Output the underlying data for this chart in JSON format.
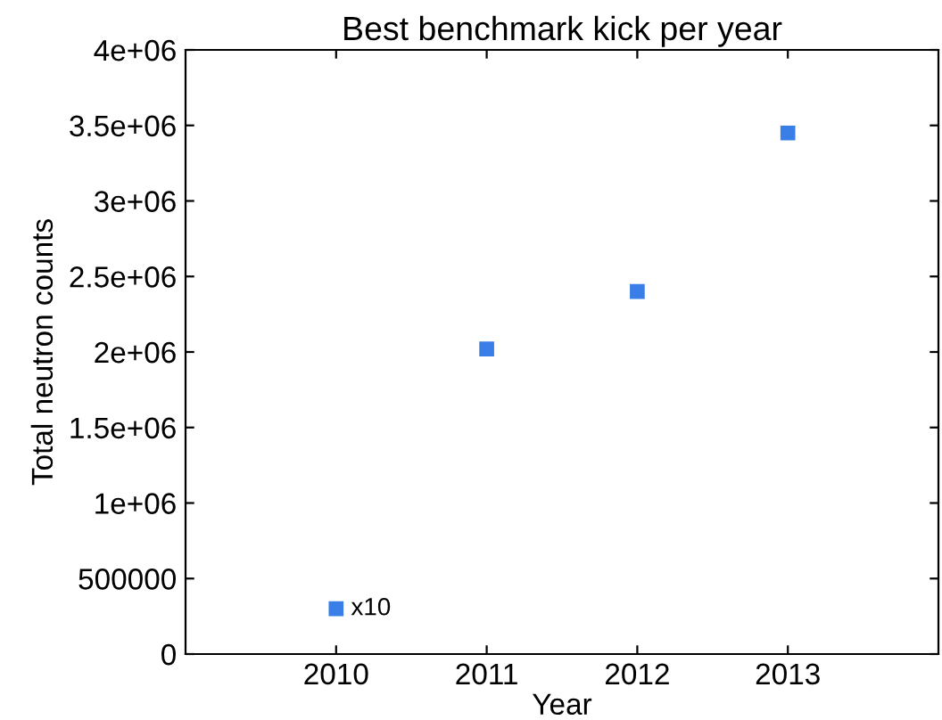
{
  "chart_data": {
    "type": "scatter",
    "title": "Best benchmark kick per year",
    "xlabel": "Year",
    "ylabel": "Total neutron counts",
    "x": [
      2010,
      2011,
      2012,
      2013
    ],
    "series": [
      {
        "color": "#3a7ee8",
        "values": [
          300000,
          2020000,
          2400000,
          3450000
        ]
      }
    ],
    "marker": "square",
    "xlim": [
      2009,
      2014
    ],
    "xticks": [
      2010,
      2011,
      2012,
      2013
    ],
    "ylim": [
      0,
      4000000
    ],
    "yticks": [
      0,
      500000,
      {
        "value": 1000000,
        "label": "1e+06"
      },
      {
        "value": 1500000,
        "label": "1.5e+06"
      },
      {
        "value": 2000000,
        "label": "2e+06"
      },
      {
        "value": 2500000,
        "label": "2.5e+06"
      },
      {
        "value": 3000000,
        "label": "3e+06"
      },
      {
        "value": 3500000,
        "label": "3.5e+06"
      },
      {
        "value": 4000000,
        "label": "4e+06"
      }
    ],
    "annotations": [
      {
        "text": "x10",
        "x": 2010,
        "y": 300000
      }
    ]
  }
}
